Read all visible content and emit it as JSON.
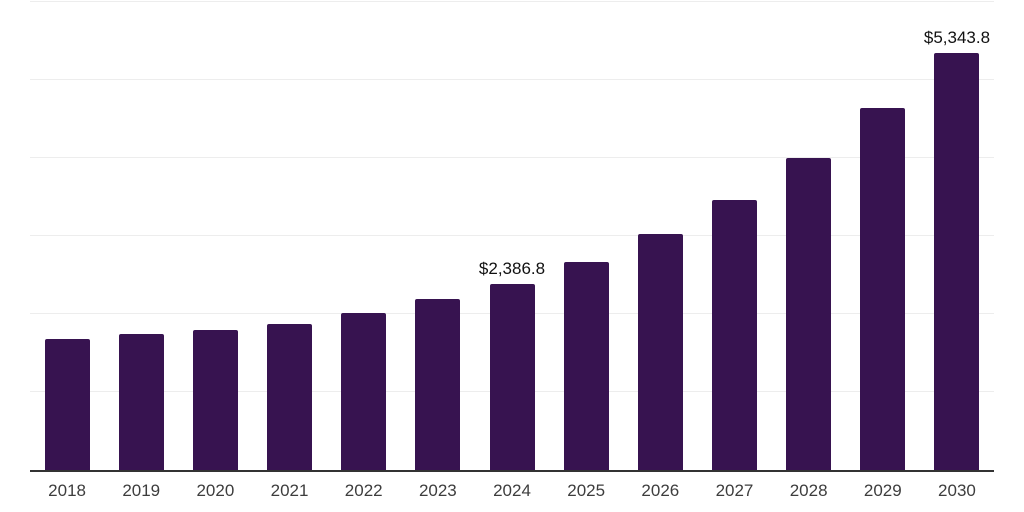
{
  "chart": {
    "background": "#ffffff",
    "bar_color": "#371350",
    "gridline_color": "#ededed",
    "axis_line_color": "#333333",
    "tick_label_color": "#3d3d3d",
    "value_label_color": "#111111"
  },
  "chart_data": {
    "type": "bar",
    "title": "",
    "xlabel": "",
    "ylabel": "",
    "categories": [
      "2018",
      "2019",
      "2020",
      "2021",
      "2022",
      "2023",
      "2024",
      "2025",
      "2026",
      "2027",
      "2028",
      "2029",
      "2030"
    ],
    "values": [
      1680,
      1745,
      1795,
      1875,
      2015,
      2190,
      2386.8,
      2670,
      3020,
      3460,
      4005,
      4640,
      5343.8
    ],
    "value_labels": {
      "2024": "$2,386.8",
      "2030": "$5,343.8"
    },
    "ylim": [
      0,
      6000
    ],
    "gridline_interval": 1000,
    "grid": true,
    "legend": "none",
    "y_axis_tick_labels_visible": false
  }
}
